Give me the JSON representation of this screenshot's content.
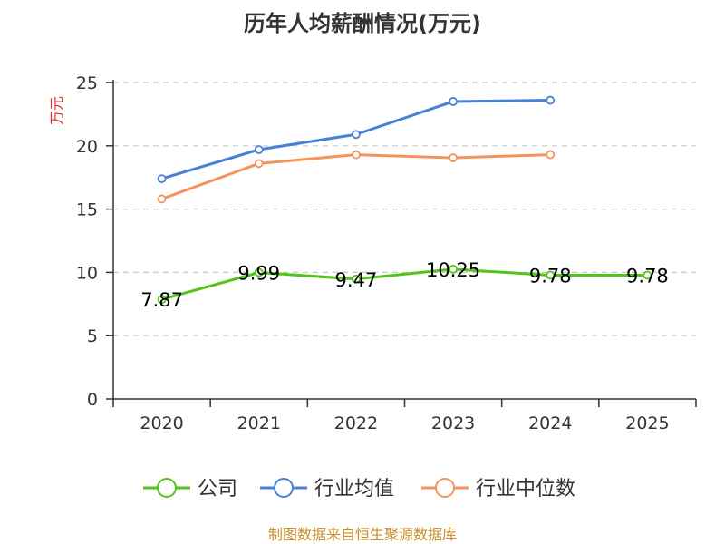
{
  "chart_data": {
    "type": "line",
    "title": "历年人均薪酬情况(万元)",
    "ylabel": "万元",
    "xlabel": "",
    "ylim": [
      0,
      25
    ],
    "yticks": [
      0,
      5,
      10,
      15,
      20,
      25
    ],
    "categories": [
      "2020",
      "2021",
      "2022",
      "2023",
      "2024",
      "2025"
    ],
    "grid": true,
    "legend_position": "bottom",
    "series": [
      {
        "name": "公司",
        "color": "#52c41a",
        "values": [
          7.87,
          9.99,
          9.47,
          10.25,
          9.78,
          9.78
        ],
        "labels": [
          "7.87",
          "9.99",
          "9.47",
          "10.25",
          "9.78",
          "9.78"
        ]
      },
      {
        "name": "行业均值",
        "color": "#4a7fd6",
        "values": [
          17.4,
          19.7,
          20.9,
          23.5,
          23.6,
          null
        ]
      },
      {
        "name": "行业中位数",
        "color": "#f4935b",
        "values": [
          15.8,
          18.6,
          19.3,
          19.05,
          19.3,
          null
        ]
      }
    ],
    "source": "制图数据来自恒生聚源数据库"
  }
}
